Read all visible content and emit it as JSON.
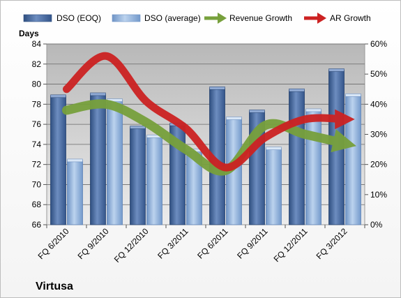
{
  "chart_data": {
    "type": "bar",
    "title": "",
    "company_label": "Virtusa",
    "ylabel": "Days",
    "categories": [
      "FQ 6/2010",
      "FQ 9/2010",
      "FQ 12/2010",
      "FQ 3/2011",
      "FQ 6/2011",
      "FQ 9/2011",
      "FQ 12/2011",
      "FQ 3/2012"
    ],
    "ylim": [
      66,
      84
    ],
    "yticks": [
      66,
      68,
      70,
      72,
      74,
      76,
      78,
      80,
      82,
      84
    ],
    "y2lim": [
      0,
      60
    ],
    "y2ticks": [
      "0%",
      "10%",
      "20%",
      "30%",
      "40%",
      "50%",
      "60%"
    ],
    "y2tick_values": [
      0,
      10,
      20,
      30,
      40,
      50,
      60
    ],
    "grid": true,
    "legend_position": "top",
    "series": [
      {
        "name": "DSO (EOQ)",
        "kind": "bar",
        "axis": "left",
        "color": "#4f6fa3",
        "values": [
          78.8,
          79.0,
          75.7,
          76.0,
          79.6,
          77.3,
          79.4,
          81.4
        ]
      },
      {
        "name": "DSO (average)",
        "kind": "bar",
        "axis": "left",
        "color": "#93b4dc",
        "values": [
          72.4,
          78.4,
          74.8,
          73.4,
          76.6,
          73.6,
          77.4,
          78.9
        ]
      },
      {
        "name": "Revenue Growth",
        "kind": "line",
        "axis": "right",
        "color": "#77a03c",
        "values": [
          38,
          40,
          34,
          25,
          18,
          33,
          30,
          27
        ]
      },
      {
        "name": "AR Growth",
        "kind": "line",
        "axis": "right",
        "color": "#cc2222",
        "values": [
          45,
          56,
          41,
          32,
          19,
          29,
          35,
          35
        ]
      }
    ]
  }
}
